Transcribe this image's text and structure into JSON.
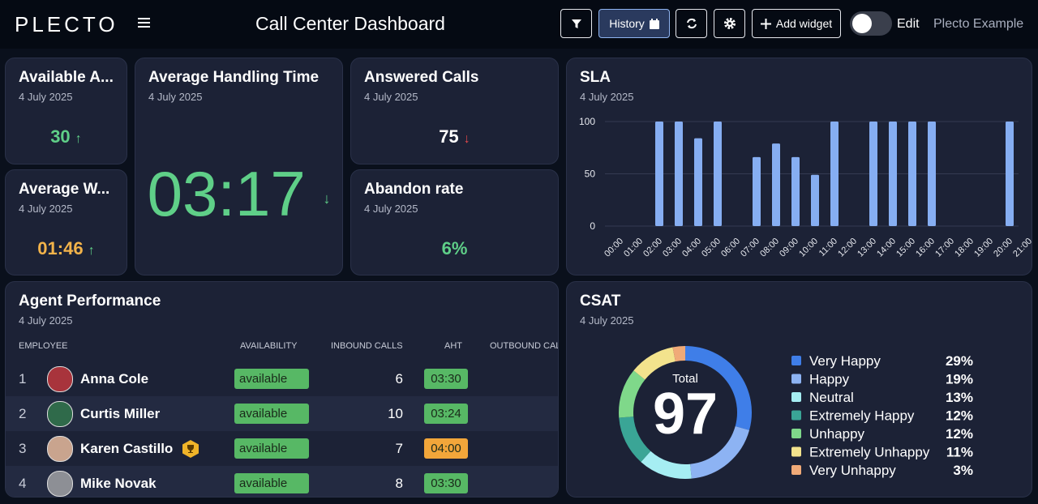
{
  "header": {
    "logo": "PLECTO",
    "title": "Call Center Dashboard",
    "history": "History",
    "add_widget": "Add widget",
    "edit": "Edit",
    "account": "Plecto Example"
  },
  "widgets": [
    {
      "title": "Available A...",
      "date": "4 July 2025",
      "value": 30
    },
    {
      "title": "Average W...",
      "date": "4 July 2025",
      "value": "01:46"
    },
    {
      "title": "Average Handling Time",
      "date": "4 July 2025",
      "value": "03:17"
    },
    {
      "title": "Answered Calls",
      "date": "4 July 2025",
      "value": 75
    },
    {
      "title": "Abandon rate",
      "date": "4 July 2025",
      "value": "6%"
    }
  ],
  "agent_table": {
    "title": "Agent Performance",
    "date": "4 July 2025",
    "columns": [
      "EMPLOYEE",
      "AVAILABILITY",
      "INBOUND CALLS",
      "AHT",
      "OUTBOUND CAL"
    ],
    "rows": [
      [
        1,
        "Anna Cole",
        "available",
        6,
        "03:30"
      ],
      [
        2,
        "Curtis Miller",
        "available",
        10,
        "03:24"
      ],
      [
        3,
        "Karen Castillo",
        "available",
        7,
        "04:00"
      ],
      [
        4,
        "Mike Novak",
        "available",
        8,
        "03:30"
      ]
    ]
  },
  "chart_data": [
    {
      "type": "bar",
      "title": "SLA",
      "subtitle": "4 July 2025",
      "categories": [
        "00:00",
        "01:00",
        "02:00",
        "03:00",
        "04:00",
        "05:00",
        "06:00",
        "07:00",
        "08:00",
        "09:00",
        "10:00",
        "11:00",
        "12:00",
        "13:00",
        "14:00",
        "15:00",
        "16:00",
        "17:00",
        "18:00",
        "19:00",
        "20:00",
        "21:00"
      ],
      "values": [
        null,
        null,
        100,
        100,
        84,
        100,
        null,
        66,
        79,
        66,
        49,
        100,
        null,
        100,
        100,
        100,
        100,
        null,
        null,
        null,
        100,
        null
      ],
      "color": "#86aef2",
      "ylim": [
        0,
        100
      ],
      "yticks": [
        0,
        50,
        100
      ],
      "grid": true
    },
    {
      "type": "pie",
      "donut": true,
      "title": "CSAT",
      "subtitle": "4 July 2025",
      "total_label": "Total",
      "total": 97,
      "categories": [
        "Very Happy",
        "Happy",
        "Neutral",
        "Extremely Happy",
        "Unhappy",
        "Extremely Unhappy",
        "Very Unhappy"
      ],
      "values": [
        29,
        19,
        13,
        12,
        12,
        11,
        3
      ],
      "value_labels": [
        "29%",
        "19%",
        "13%",
        "12%",
        "12%",
        "11%",
        "3%"
      ],
      "colors": [
        "#3f7ee8",
        "#8db3f3",
        "#a6eef3",
        "#3aa596",
        "#7fd88a",
        "#f3e38d",
        "#f0aa78"
      ]
    }
  ]
}
